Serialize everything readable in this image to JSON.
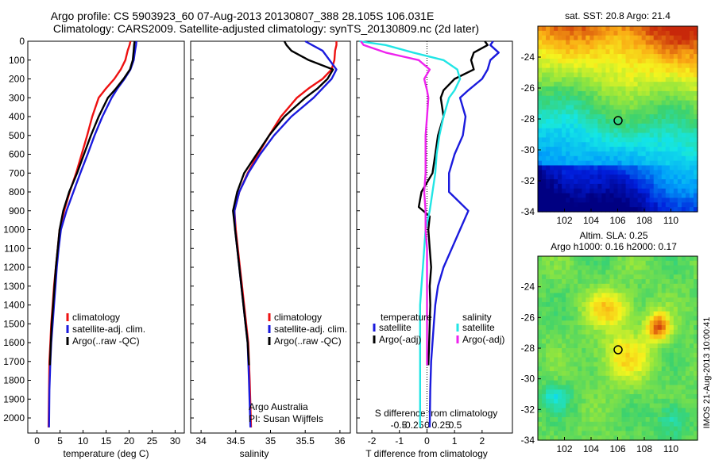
{
  "header": {
    "line1": "Argo profile: CS 5903923_60 07-Aug-2013 20130807_388 28.105S 106.031E",
    "line2": "Climatology: CARS2009. Satellite-adjusted climatology: synTS_20130809.nc (2d later)"
  },
  "side_stamp": "IMOS 21-Aug-2013 10:00:41",
  "colors": {
    "climatology": "#ee1111",
    "satellite": "#1a1add",
    "argo": "#000000",
    "salinity_sat": "#22e5e5",
    "salinity_argo": "#ee22ee"
  },
  "chart_data": [
    {
      "type": "line",
      "panel": "temperature",
      "xlabel": "temperature (deg C)",
      "ylabel": "",
      "xlim": [
        -2,
        32
      ],
      "ylim": [
        2080,
        0
      ],
      "xticks": [
        "0",
        "5",
        "10",
        "15",
        "20",
        "25",
        "30"
      ],
      "xtick_values": [
        0,
        5,
        10,
        15,
        20,
        25,
        30
      ],
      "yticks": [
        "0",
        "100",
        "200",
        "300",
        "400",
        "500",
        "600",
        "700",
        "800",
        "900",
        "1000",
        "1100",
        "1200",
        "1300",
        "1400",
        "1500",
        "1600",
        "1700",
        "1800",
        "1900",
        "2000"
      ],
      "ytick_values": [
        0,
        100,
        200,
        300,
        400,
        500,
        600,
        700,
        800,
        900,
        1000,
        1100,
        1200,
        1300,
        1400,
        1500,
        1600,
        1700,
        1800,
        1900,
        2000
      ],
      "legend": [
        "climatology",
        "satellite-adj. clim.",
        "Argo(..raw -QC)"
      ],
      "series": [
        {
          "name": "climatology",
          "color": "#ee1111",
          "x": [
            20.3,
            20.1,
            19.7,
            19.2,
            18.2,
            16.8,
            15.0,
            13.4,
            12.0,
            10.9,
            9.7,
            8.5,
            7.1,
            5.9,
            4.9,
            4.5,
            4.1,
            3.7,
            3.4,
            3.1,
            2.9,
            2.7,
            2.6,
            2.5
          ],
          "y": [
            0,
            20,
            50,
            100,
            150,
            200,
            250,
            300,
            400,
            500,
            600,
            700,
            800,
            900,
            1000,
            1100,
            1200,
            1300,
            1400,
            1500,
            1600,
            1700,
            1850,
            2050
          ]
        },
        {
          "name": "satellite-adj. clim.",
          "color": "#1a1add",
          "x": [
            21.6,
            21.5,
            21.3,
            21.0,
            20.3,
            19.0,
            17.5,
            16.2,
            14.2,
            12.5,
            11.0,
            9.4,
            7.9,
            6.4,
            5.2,
            4.7,
            4.3,
            4.0,
            3.7,
            3.4,
            3.1,
            2.9,
            2.7,
            2.6
          ],
          "y": [
            0,
            20,
            50,
            100,
            150,
            200,
            250,
            300,
            400,
            500,
            600,
            700,
            800,
            900,
            1000,
            1100,
            1200,
            1300,
            1400,
            1500,
            1600,
            1700,
            1850,
            2050
          ]
        },
        {
          "name": "Argo(..raw -QC)",
          "color": "#000000",
          "x": [
            21.2,
            21.1,
            21.0,
            20.8,
            20.2,
            18.8,
            17.2,
            15.4,
            13.4,
            11.7,
            10.2,
            8.7,
            7.0,
            5.7,
            4.9,
            4.5,
            4.1,
            3.8,
            3.5,
            3.2,
            3.0,
            2.8
          ],
          "y": [
            0,
            20,
            50,
            100,
            150,
            200,
            250,
            300,
            400,
            500,
            600,
            700,
            800,
            900,
            1000,
            1100,
            1200,
            1300,
            1400,
            1500,
            1600,
            1720
          ]
        }
      ]
    },
    {
      "type": "line",
      "panel": "salinity",
      "xlabel": "salinity",
      "xlim": [
        33.85,
        36.15
      ],
      "ylim": [
        2080,
        0
      ],
      "xticks": [
        "34",
        "34.5",
        "35",
        "35.5",
        "36"
      ],
      "xtick_values": [
        34,
        34.5,
        35,
        35.5,
        36
      ],
      "legend": [
        "climatology",
        "satellite-adj. clim.",
        "Argo(..raw -QC)"
      ],
      "notes": [
        "Argo Australia",
        "PI: Susan Wijffels"
      ],
      "series": [
        {
          "name": "climatology",
          "color": "#ee1111",
          "x": [
            35.95,
            35.95,
            35.93,
            35.92,
            35.88,
            35.75,
            35.55,
            35.38,
            35.15,
            34.98,
            34.82,
            34.67,
            34.55,
            34.48,
            34.5,
            34.53,
            34.56,
            34.59,
            34.62,
            34.65,
            34.68,
            34.7,
            34.72
          ],
          "y": [
            0,
            20,
            50,
            100,
            150,
            200,
            250,
            300,
            400,
            500,
            600,
            700,
            800,
            900,
            1000,
            1100,
            1200,
            1300,
            1400,
            1500,
            1600,
            1800,
            2050
          ]
        },
        {
          "name": "satellite-adj. clim.",
          "color": "#1a1add",
          "x": [
            35.5,
            35.6,
            35.75,
            35.85,
            35.95,
            35.88,
            35.75,
            35.62,
            35.3,
            35.05,
            34.85,
            34.68,
            34.55,
            34.48,
            34.49,
            34.52,
            34.55,
            34.58,
            34.61,
            34.64,
            34.67,
            34.69,
            34.71
          ],
          "y": [
            0,
            20,
            50,
            100,
            150,
            200,
            250,
            300,
            400,
            500,
            600,
            700,
            800,
            900,
            1000,
            1100,
            1200,
            1300,
            1400,
            1500,
            1600,
            1800,
            2050
          ]
        },
        {
          "name": "Argo(..raw -QC)",
          "color": "#000000",
          "x": [
            35.2,
            35.23,
            35.3,
            35.55,
            35.9,
            35.82,
            35.68,
            35.5,
            35.2,
            34.98,
            34.8,
            34.62,
            34.52,
            34.46,
            34.49,
            34.52,
            34.55,
            34.58,
            34.61,
            34.64,
            34.67,
            34.69
          ],
          "y": [
            0,
            20,
            50,
            100,
            150,
            200,
            250,
            300,
            400,
            500,
            600,
            700,
            800,
            900,
            1000,
            1100,
            1200,
            1300,
            1400,
            1500,
            1600,
            1720
          ]
        }
      ]
    },
    {
      "type": "line",
      "panel": "difference",
      "xlabel": "T difference from climatology",
      "xlabel2": "S difference from climatology",
      "xlim": [
        -2.55,
        3.1
      ],
      "ylim": [
        2080,
        0
      ],
      "xticks": [
        "-2",
        "-1",
        "0",
        "1",
        "2"
      ],
      "xtick_values": [
        -2,
        -1,
        0,
        1,
        2
      ],
      "sticks": [
        "-0.5",
        "-0.25",
        "0",
        "0.25",
        "0.5"
      ],
      "stick_values": [
        -0.5,
        -0.25,
        0,
        0.25,
        0.5
      ],
      "legend_temperature": [
        "temperature",
        "satellite",
        "Argo(-adj)"
      ],
      "legend_salinity": [
        "salinity",
        "satellite",
        "Argo(-adj)"
      ],
      "series": [
        {
          "name": "temperature satellite",
          "color": "#1a1add",
          "x": [
            2.4,
            2.3,
            2.6,
            2.3,
            2.2,
            2.0,
            1.5,
            1.2,
            1.4,
            1.3,
            1.0,
            0.8,
            0.8,
            1.5,
            1.2,
            0.9,
            0.6,
            0.4,
            0.3,
            0.25,
            0.2,
            0.15,
            0.12,
            0.1
          ],
          "y": [
            0,
            20,
            60,
            100,
            150,
            200,
            260,
            300,
            400,
            500,
            600,
            700,
            800,
            900,
            1000,
            1100,
            1200,
            1300,
            1400,
            1500,
            1600,
            1700,
            1850,
            2050
          ]
        },
        {
          "name": "temperature Argo(-adj)",
          "color": "#000000",
          "x": [
            2.1,
            2.2,
            1.7,
            1.6,
            1.7,
            1.0,
            0.6,
            0.5,
            0.6,
            0.4,
            0.3,
            0.2,
            -0.2,
            -0.3,
            0.1,
            0.05,
            0.1,
            0.15,
            0.1,
            0.12,
            0.1,
            0.08,
            0.05
          ],
          "y": [
            0,
            20,
            60,
            100,
            150,
            200,
            260,
            300,
            400,
            500,
            600,
            700,
            800,
            880,
            930,
            1000,
            1100,
            1200,
            1300,
            1400,
            1500,
            1600,
            1720
          ]
        },
        {
          "name": "salinity satellite",
          "color": "#22e5e5",
          "x": [
            -2.45,
            -1.5,
            -0.5,
            0.6,
            1.1,
            1.2,
            1.0,
            0.8,
            0.6,
            0.45,
            0.35,
            0.3,
            0.2,
            0.1,
            -0.05,
            -0.1,
            -0.15,
            -0.2,
            -0.25,
            -0.25,
            -0.25,
            -0.25,
            -0.25,
            -0.25
          ],
          "y": [
            0,
            20,
            60,
            100,
            150,
            200,
            260,
            300,
            400,
            500,
            600,
            700,
            800,
            900,
            1000,
            1100,
            1200,
            1300,
            1400,
            1500,
            1600,
            1700,
            1850,
            2050
          ]
        },
        {
          "name": "salinity Argo(-adj)",
          "color": "#ee22ee",
          "x": [
            -2.4,
            -2.3,
            -1.5,
            -0.3,
            0.1,
            -0.1,
            0.0,
            0.05,
            0.0,
            -0.05,
            -0.05,
            -0.05,
            -0.1,
            -0.05,
            -0.05,
            0.0,
            0.0,
            0.0,
            0.0,
            0.0,
            0.0,
            0.0
          ],
          "y": [
            0,
            20,
            60,
            100,
            150,
            200,
            260,
            300,
            400,
            500,
            600,
            700,
            800,
            900,
            1000,
            1100,
            1200,
            1300,
            1400,
            1500,
            1600,
            1720
          ]
        }
      ]
    },
    {
      "type": "heatmap",
      "panel": "sst_map",
      "title": "sat. SST: 20.8 Argo: 21.4",
      "xlim": [
        100,
        112
      ],
      "ylim": [
        -34,
        -22
      ],
      "xticks": [
        "102",
        "104",
        "106",
        "108",
        "110"
      ],
      "xtick_values": [
        102,
        104,
        106,
        108,
        110
      ],
      "yticks": [
        "-24",
        "-26",
        "-28",
        "-30",
        "-32",
        "-34"
      ],
      "ytick_values": [
        -24,
        -26,
        -28,
        -30,
        -32,
        -34
      ],
      "marker": {
        "lon": 106.031,
        "lat": -28.105
      }
    },
    {
      "type": "heatmap",
      "panel": "sla_map",
      "title": "Altim. SLA: 0.25",
      "subtitle": "Argo h1000: 0.16 h2000: 0.17",
      "xlim": [
        100,
        112
      ],
      "ylim": [
        -34,
        -22
      ],
      "xticks": [
        "102",
        "104",
        "106",
        "108",
        "110"
      ],
      "xtick_values": [
        102,
        104,
        106,
        108,
        110
      ],
      "yticks": [
        "-24",
        "-26",
        "-28",
        "-30",
        "-32",
        "-34"
      ],
      "ytick_values": [
        -24,
        -26,
        -28,
        -30,
        -32,
        -34
      ],
      "marker": {
        "lon": 106.031,
        "lat": -28.105
      }
    }
  ]
}
